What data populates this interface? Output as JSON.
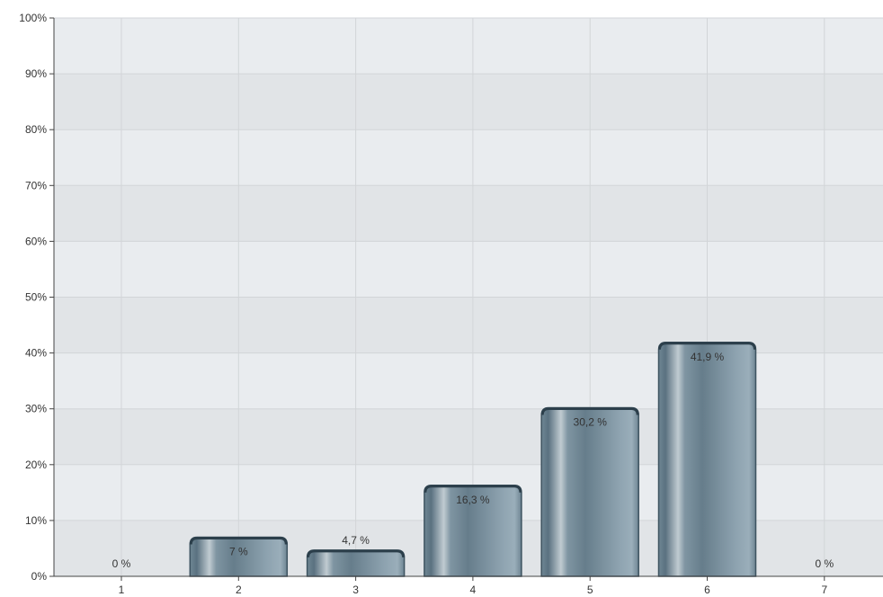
{
  "chart_data": {
    "type": "bar",
    "categories": [
      "1",
      "2",
      "3",
      "4",
      "5",
      "6",
      "7"
    ],
    "values": [
      0,
      7,
      4.7,
      16.3,
      30.2,
      41.9,
      0
    ],
    "value_labels": [
      "0 %",
      "7 %",
      "4,7 %",
      "16,3 %",
      "30,2 %",
      "41,9 %",
      "0 %"
    ],
    "y_ticks": [
      0,
      10,
      20,
      30,
      40,
      50,
      60,
      70,
      80,
      90,
      100
    ],
    "y_tick_labels": [
      "0%",
      "10%",
      "20%",
      "30%",
      "40%",
      "50%",
      "60%",
      "70%",
      "80%",
      "90%",
      "100%"
    ],
    "ylim": [
      0,
      100
    ],
    "grid": true,
    "title": "",
    "xlabel": "",
    "ylabel": ""
  },
  "colors": {
    "plot_band_light": "#e9ecef",
    "plot_band_dark": "#e1e4e7",
    "grid": "#d2d5d8",
    "axis": "#444444",
    "bar_edge": "#3d5360",
    "bar_dark": "#5e7684",
    "bar_highlight": "#b7c3ca",
    "bar_light": "#93a8b5"
  }
}
